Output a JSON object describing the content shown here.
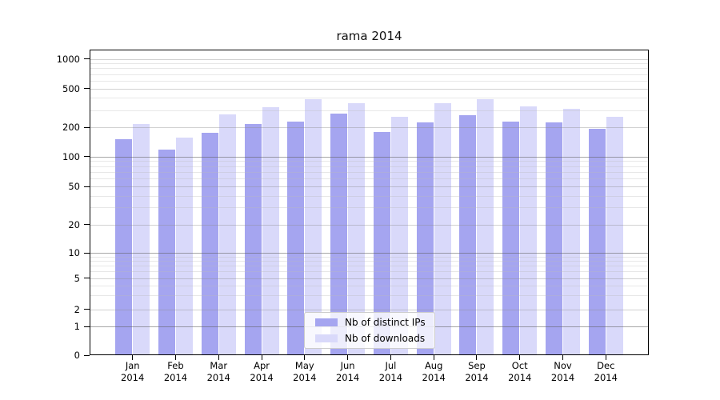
{
  "chart_data": {
    "type": "bar",
    "title": "rama 2014",
    "categories": [
      "Jan",
      "Feb",
      "Mar",
      "Apr",
      "May",
      "Jun",
      "Jul",
      "Aug",
      "Sep",
      "Oct",
      "Nov",
      "Dec"
    ],
    "category_year": "2014",
    "series": [
      {
        "name": "Nb of distinct IPs",
        "color": "#a5a5f0",
        "values": [
          150,
          117,
          175,
          218,
          228,
          278,
          180,
          225,
          268,
          230,
          225,
          195
        ]
      },
      {
        "name": "Nb of downloads",
        "color": "#d9d9fa",
        "values": [
          215,
          156,
          270,
          320,
          390,
          350,
          255,
          350,
          390,
          325,
          310,
          255
        ]
      }
    ],
    "y_axis": {
      "scale": "symlog",
      "ticks": [
        0,
        1,
        2,
        5,
        10,
        20,
        50,
        100,
        200,
        500,
        1000
      ],
      "ylim": [
        0,
        1250
      ]
    },
    "x_axis": {
      "label_lines": 2
    },
    "grid": true,
    "legend_position": "inside-bottom-center",
    "background": "#ffffff"
  }
}
